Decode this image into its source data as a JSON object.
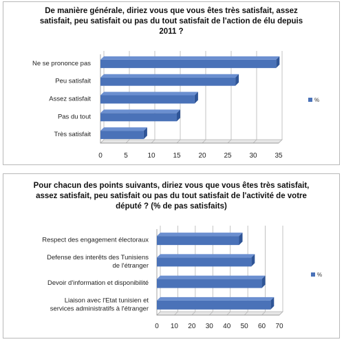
{
  "chart_data": [
    {
      "type": "bar",
      "orientation": "horizontal",
      "title": "De manière générale, diriez vous que vous êtes très satisfait, assez satisfait, peu satisfait ou pas du tout satisfait de l'action de élu depuis 2011  ?",
      "categories": [
        "Ne se prononce pas",
        "Peu satisfait",
        "Assez satisfait",
        "Pas du tout",
        "Très satisfait"
      ],
      "series": [
        {
          "name": "%",
          "values": [
            34.5,
            26.5,
            18.5,
            15,
            8.5
          ]
        }
      ],
      "xlim": [
        0,
        35
      ],
      "xticks": [
        0,
        5,
        10,
        15,
        20,
        25,
        30,
        35
      ],
      "grid": true,
      "legend": "right",
      "colors": {
        "bar": "#4a72b8",
        "bar_top": "#6b8fd0",
        "bar_side": "#2f5597",
        "grid": "#b4b4b4"
      }
    },
    {
      "type": "bar",
      "orientation": "horizontal",
      "title": "Pour chacun des points suivants, diriez vous que vous êtes très satisfait, assez satisfait, peu satisfait ou pas du tout satisfait de l'activité de votre député ? (% de pas satisfaits)",
      "categories": [
        [
          "Respect des engagement électoraux"
        ],
        [
          "Defense des interêts des Tunisiens",
          "de l'étranger"
        ],
        [
          "Devoir d'information et disponibilité"
        ],
        [
          "Liaison avec l'Etat tunisien et",
          "services administratifs à l'étranger"
        ]
      ],
      "series": [
        {
          "name": "%",
          "values": [
            47,
            54,
            60,
            65
          ]
        }
      ],
      "xlim": [
        0,
        70
      ],
      "xticks": [
        0,
        10,
        20,
        30,
        40,
        50,
        60,
        70
      ],
      "grid": true,
      "legend": "right",
      "colors": {
        "bar": "#4a72b8",
        "bar_top": "#6b8fd0",
        "bar_side": "#2f5597",
        "grid": "#b4b4b4"
      }
    }
  ]
}
